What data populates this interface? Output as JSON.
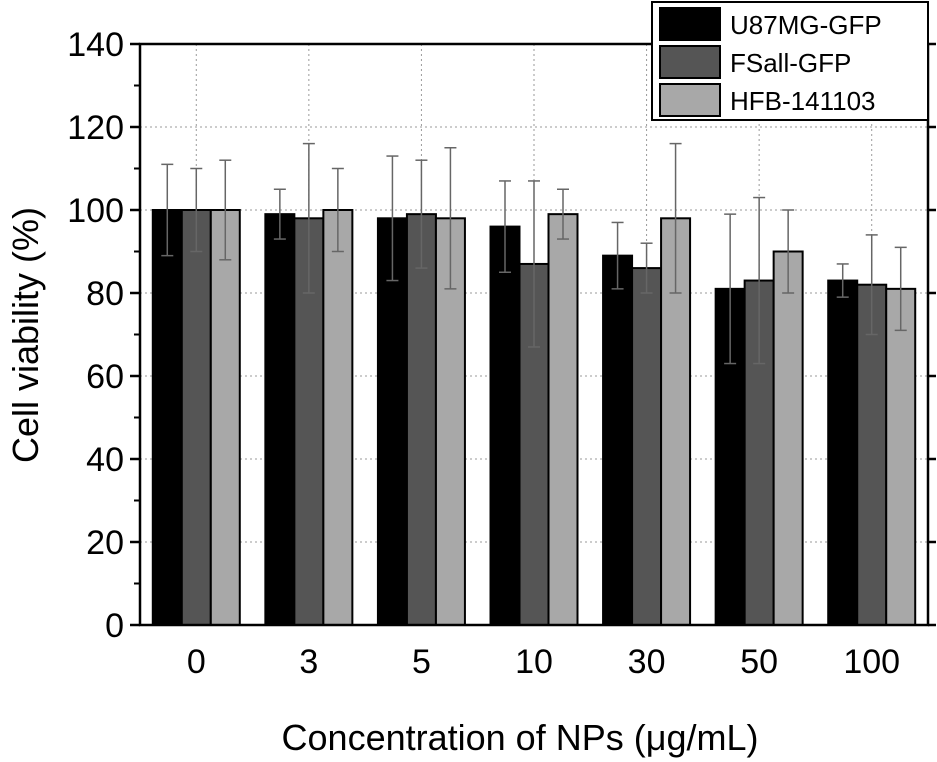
{
  "chart_data": {
    "type": "bar",
    "title": "",
    "xlabel": "Concentration of NPs (μg/mL)",
    "ylabel": "Cell viability (%)",
    "ylim": [
      0,
      140
    ],
    "yticks": [
      "0",
      "20",
      "40",
      "60",
      "80",
      "100",
      "120",
      "140"
    ],
    "grid": true,
    "legend_position": "top-right",
    "categories": [
      "0",
      "3",
      "5",
      "10",
      "30",
      "50",
      "100"
    ],
    "series": [
      {
        "name": "U87MG-GFP",
        "color": "#000000",
        "values": [
          100,
          99,
          98,
          96,
          89,
          81,
          83
        ],
        "errors": [
          11,
          6,
          15,
          11,
          8,
          18,
          4
        ]
      },
      {
        "name": "FSall-GFP",
        "color": "#555555",
        "values": [
          100,
          98,
          99,
          87,
          86,
          83,
          82
        ],
        "errors": [
          10,
          18,
          13,
          20,
          6,
          20,
          12
        ]
      },
      {
        "name": "HFB-141103",
        "color": "#a8a8a8",
        "values": [
          100,
          100,
          98,
          99,
          98,
          90,
          81
        ],
        "errors": [
          12,
          10,
          17,
          6,
          18,
          10,
          10
        ]
      }
    ]
  }
}
